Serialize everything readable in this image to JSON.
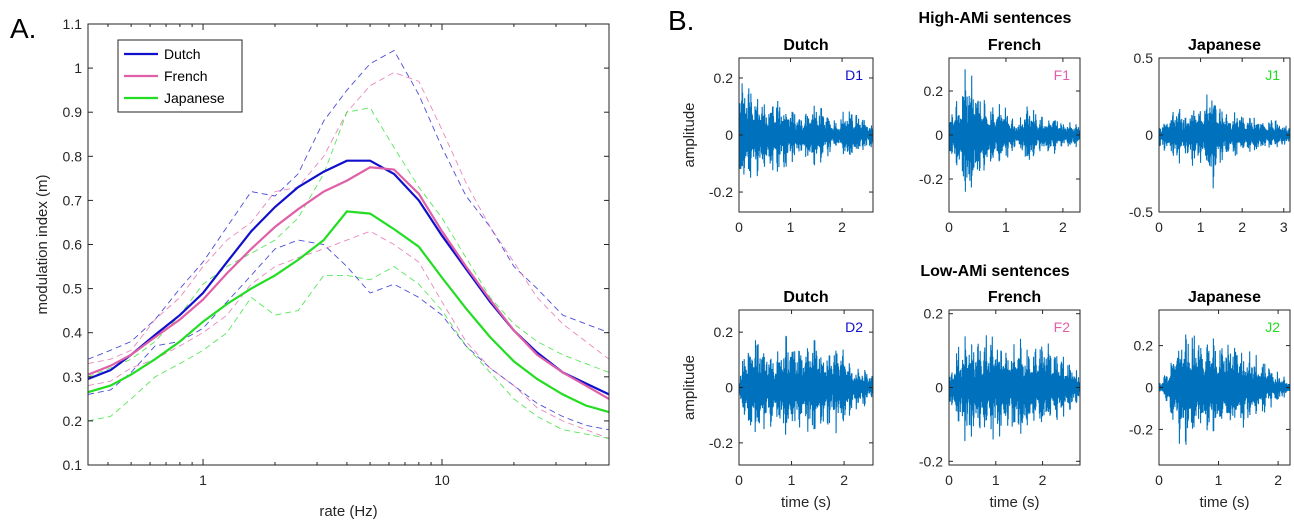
{
  "panel_labels": {
    "a": "A.",
    "b": "B."
  },
  "headings": {
    "high": "High-AMi sentences",
    "low": "Low-AMi sentences"
  },
  "chart_data": [
    {
      "type": "line",
      "xscale": "log",
      "xlim": [
        0.33,
        50
      ],
      "ylim": [
        0.1,
        1.1
      ],
      "xticks": [
        1,
        10
      ],
      "xtick_labels": [
        "1",
        "10"
      ],
      "yticks": [
        0.1,
        0.2,
        0.3,
        0.4,
        0.5,
        0.6,
        0.7,
        0.8,
        0.9,
        1,
        1.1
      ],
      "ytick_labels": [
        "0.1",
        "0.2",
        "0.3",
        "0.4",
        "0.5",
        "0.6",
        "0.7",
        "0.8",
        "0.9",
        "1",
        "1.1"
      ],
      "xlabel": "rate (Hz)",
      "ylabel": "modulation index (m)",
      "grid": false,
      "legend": "top-left",
      "x": [
        0.33,
        0.41,
        0.5,
        0.63,
        0.8,
        1,
        1.26,
        1.59,
        2,
        2.5,
        3.2,
        4,
        5,
        6.3,
        8,
        10,
        12.6,
        15.9,
        20,
        25,
        32,
        40,
        50
      ],
      "series": [
        {
          "name": "Dutch",
          "color": "#1010cc",
          "mean": [
            0.295,
            0.315,
            0.35,
            0.395,
            0.44,
            0.49,
            0.56,
            0.63,
            0.685,
            0.73,
            0.765,
            0.79,
            0.79,
            0.76,
            0.7,
            0.62,
            0.545,
            0.47,
            0.405,
            0.355,
            0.31,
            0.285,
            0.26
          ],
          "upper": [
            0.34,
            0.36,
            0.38,
            0.43,
            0.5,
            0.56,
            0.64,
            0.72,
            0.71,
            0.76,
            0.88,
            0.95,
            1.01,
            1.04,
            0.94,
            0.82,
            0.71,
            0.64,
            0.55,
            0.5,
            0.44,
            0.42,
            0.4
          ],
          "lower": [
            0.26,
            0.27,
            0.31,
            0.37,
            0.38,
            0.41,
            0.47,
            0.53,
            0.59,
            0.61,
            0.6,
            0.55,
            0.49,
            0.51,
            0.48,
            0.44,
            0.37,
            0.32,
            0.28,
            0.24,
            0.21,
            0.19,
            0.18
          ]
        },
        {
          "name": "French",
          "color": "#e060a8",
          "mean": [
            0.305,
            0.325,
            0.35,
            0.39,
            0.43,
            0.475,
            0.535,
            0.59,
            0.64,
            0.68,
            0.72,
            0.745,
            0.775,
            0.77,
            0.715,
            0.63,
            0.55,
            0.475,
            0.405,
            0.35,
            0.31,
            0.28,
            0.25
          ],
          "upper": [
            0.33,
            0.34,
            0.36,
            0.43,
            0.48,
            0.55,
            0.61,
            0.65,
            0.72,
            0.73,
            0.8,
            0.9,
            0.96,
            0.99,
            0.97,
            0.86,
            0.74,
            0.64,
            0.56,
            0.48,
            0.42,
            0.38,
            0.34
          ],
          "lower": [
            0.28,
            0.29,
            0.32,
            0.34,
            0.37,
            0.4,
            0.44,
            0.51,
            0.55,
            0.57,
            0.59,
            0.61,
            0.63,
            0.6,
            0.56,
            0.47,
            0.38,
            0.32,
            0.28,
            0.23,
            0.2,
            0.18,
            0.16
          ]
        },
        {
          "name": "Japanese",
          "color": "#22dd22",
          "mean": [
            0.265,
            0.28,
            0.305,
            0.34,
            0.38,
            0.425,
            0.465,
            0.5,
            0.53,
            0.565,
            0.61,
            0.675,
            0.67,
            0.635,
            0.595,
            0.525,
            0.455,
            0.39,
            0.335,
            0.295,
            0.26,
            0.235,
            0.22
          ],
          "upper": [
            0.3,
            0.32,
            0.34,
            0.38,
            0.44,
            0.51,
            0.55,
            0.58,
            0.61,
            0.66,
            0.76,
            0.9,
            0.91,
            0.82,
            0.73,
            0.66,
            0.57,
            0.48,
            0.42,
            0.38,
            0.35,
            0.33,
            0.31
          ],
          "lower": [
            0.2,
            0.21,
            0.25,
            0.3,
            0.33,
            0.36,
            0.4,
            0.48,
            0.44,
            0.45,
            0.53,
            0.53,
            0.52,
            0.55,
            0.51,
            0.45,
            0.37,
            0.31,
            0.25,
            0.21,
            0.18,
            0.17,
            0.16
          ]
        }
      ]
    },
    {
      "type": "line",
      "panels": [
        {
          "row": "high",
          "title": "Dutch",
          "tag": "D1",
          "tag_color": "#1010cc",
          "duration": 2.6,
          "xlim": [
            0,
            2.6
          ],
          "ylim": [
            -0.27,
            0.27
          ],
          "xticks": [
            0,
            1,
            2
          ],
          "yticks": [
            -0.2,
            0,
            0.2
          ],
          "ytick_labels": [
            "-0.2",
            "0",
            "0.2"
          ],
          "ylabel": "amplitude",
          "xlabel": "",
          "peak": 0.23,
          "envelope": [
            0.95,
            0.9,
            0.75,
            0.55,
            0.7,
            0.6,
            0.45,
            0.3,
            0.55,
            0.5,
            0.35,
            0.25,
            0.45,
            0.4,
            0.3,
            0.2
          ]
        },
        {
          "row": "high",
          "title": "French",
          "tag": "F1",
          "tag_color": "#e060a8",
          "duration": 2.3,
          "xlim": [
            0,
            2.3
          ],
          "ylim": [
            -0.35,
            0.35
          ],
          "xticks": [
            0,
            1,
            2
          ],
          "yticks": [
            -0.2,
            0,
            0.2
          ],
          "ytick_labels": [
            "-0.2",
            "0",
            "0.2"
          ],
          "ylabel": "",
          "xlabel": "",
          "peak": 0.34,
          "envelope": [
            0.3,
            0.55,
            1.0,
            0.75,
            0.6,
            0.4,
            0.55,
            0.3,
            0.2,
            0.5,
            0.35,
            0.25,
            0.3,
            0.2,
            0.2,
            0.15
          ]
        },
        {
          "row": "high",
          "title": "Japanese",
          "tag": "J1",
          "tag_color": "#22dd22",
          "duration": 3.15,
          "xlim": [
            0,
            3.15
          ],
          "ylim": [
            -0.5,
            0.5
          ],
          "xticks": [
            0,
            1,
            2,
            3
          ],
          "yticks": [
            -0.5,
            0,
            0.5
          ],
          "ytick_labels": [
            "-0.5",
            "0",
            "0.5"
          ],
          "ylabel": "",
          "xlabel": "",
          "peak": 0.5,
          "envelope": [
            0.2,
            0.25,
            0.45,
            0.3,
            0.5,
            0.35,
            0.95,
            0.4,
            0.3,
            0.35,
            0.25,
            0.3,
            0.2,
            0.25,
            0.2,
            0.15
          ]
        },
        {
          "row": "low",
          "title": "Dutch",
          "tag": "D2",
          "tag_color": "#1010cc",
          "duration": 2.55,
          "xlim": [
            0,
            2.55
          ],
          "ylim": [
            -0.28,
            0.28
          ],
          "xticks": [
            0,
            1,
            2
          ],
          "yticks": [
            -0.2,
            0,
            0.2
          ],
          "ytick_labels": [
            "-0.2",
            "0",
            "0.2"
          ],
          "ylabel": "amplitude",
          "xlabel": "time (s)",
          "peak": 0.25,
          "envelope": [
            0.2,
            0.75,
            0.9,
            0.7,
            0.55,
            0.8,
            0.9,
            0.6,
            0.8,
            0.75,
            0.6,
            0.7,
            0.55,
            0.4,
            0.3,
            0.2
          ]
        },
        {
          "row": "low",
          "title": "French",
          "tag": "F2",
          "tag_color": "#e060a8",
          "duration": 2.8,
          "xlim": [
            0,
            2.8
          ],
          "ylim": [
            -0.21,
            0.21
          ],
          "xticks": [
            0,
            1,
            2
          ],
          "yticks": [
            -0.2,
            0,
            0.2
          ],
          "ytick_labels": [
            "-0.2",
            "0",
            "0.2"
          ],
          "ylabel": "",
          "xlabel": "time (s)",
          "peak": 0.19,
          "envelope": [
            0.2,
            0.6,
            0.85,
            0.7,
            0.8,
            0.9,
            0.75,
            0.65,
            0.8,
            0.7,
            0.6,
            0.75,
            0.6,
            0.5,
            0.35,
            0.2
          ]
        },
        {
          "row": "low",
          "title": "Japanese",
          "tag": "J2",
          "tag_color": "#22dd22",
          "duration": 2.2,
          "xlim": [
            0,
            2.2
          ],
          "ylim": [
            -0.37,
            0.37
          ],
          "xticks": [
            0,
            1,
            2
          ],
          "yticks": [
            -0.2,
            0,
            0.2
          ],
          "ytick_labels": [
            "-0.2",
            "0",
            "0.2"
          ],
          "ylabel": "",
          "xlabel": "time (s)",
          "peak": 0.33,
          "envelope": [
            0.05,
            0.3,
            0.8,
            0.9,
            0.85,
            0.7,
            0.9,
            0.8,
            0.75,
            0.7,
            0.6,
            0.5,
            0.45,
            0.3,
            0.2,
            0.1
          ]
        }
      ]
    }
  ]
}
